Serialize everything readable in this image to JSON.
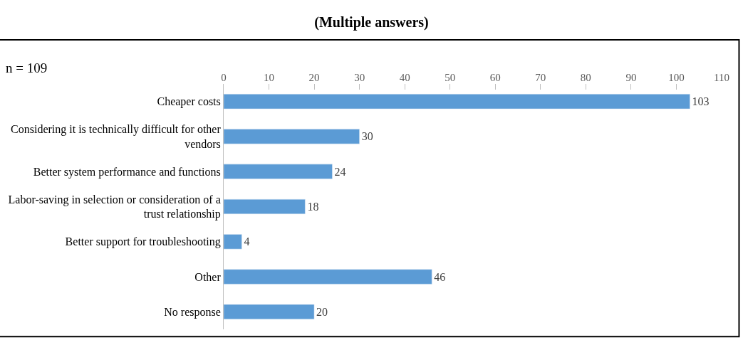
{
  "chart_data": {
    "type": "bar",
    "orientation": "horizontal",
    "title": "(Multiple answers)",
    "categories": [
      "Cheaper costs",
      "Considering it is technically difficult for other vendors",
      "Better system performance and functions",
      "Labor-saving in selection or consideration of a trust relationship",
      "Better support for troubleshooting",
      "Other",
      "No response"
    ],
    "values": [
      103,
      30,
      24,
      18,
      4,
      46,
      20
    ],
    "color": "#5b9bd5",
    "data_labels": true,
    "xlim": [
      0,
      110
    ],
    "xticks": [
      0,
      10,
      20,
      30,
      40,
      50,
      60,
      70,
      80,
      90,
      100,
      110
    ],
    "legend": false,
    "annotations": [
      "n = 109"
    ]
  }
}
